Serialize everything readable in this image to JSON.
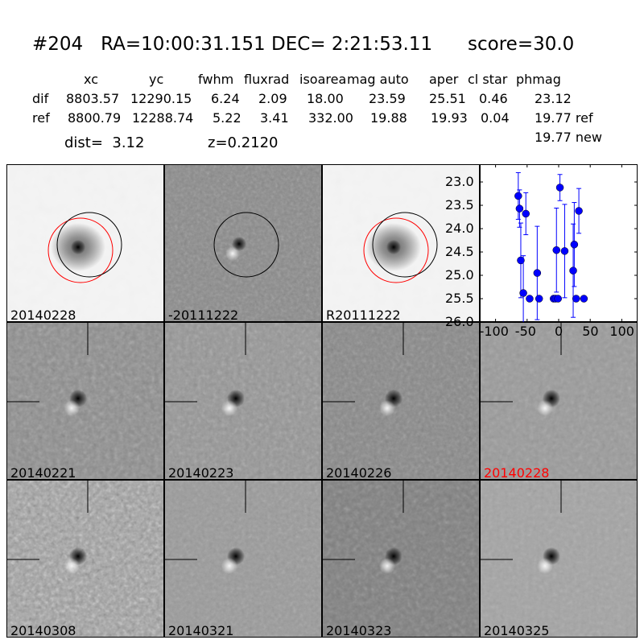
{
  "title": {
    "id": "#204",
    "ra": "RA=10:00:31.151",
    "dec": "DEC= 2:21:53.11",
    "score": "score=30.0"
  },
  "table": {
    "columns": [
      "xc",
      "yc",
      "fwhm",
      "fluxrad",
      "isoarea",
      "mag auto",
      "aper",
      "cl star",
      "phmag"
    ],
    "rows": [
      {
        "label": "dif",
        "values": [
          "8803.57",
          "12290.15",
          "6.24",
          "2.09",
          "18.00",
          "23.59",
          "25.51",
          "0.46",
          "23.12"
        ]
      },
      {
        "label": "ref",
        "values": [
          "8800.79",
          "12288.74",
          "5.22",
          "3.41",
          "332.00",
          "19.88",
          "19.93",
          "0.04",
          "19.77 ref"
        ]
      }
    ],
    "extra_phmag": "19.77 new",
    "dist": "dist=  3.12",
    "z": "z=0.2120"
  },
  "stamps": [
    {
      "label": "20140228",
      "kind": "image",
      "color": "#000000"
    },
    {
      "label": "-20111222",
      "kind": "diff",
      "color": "#000000"
    },
    {
      "label": "R20111222",
      "kind": "image",
      "color": "#000000"
    },
    {
      "label": "20140221",
      "kind": "diff",
      "color": "#000000"
    },
    {
      "label": "20140223",
      "kind": "diff",
      "color": "#000000"
    },
    {
      "label": "20140226",
      "kind": "diff",
      "color": "#000000"
    },
    {
      "label": "20140228",
      "kind": "diff",
      "color": "#ff0000"
    },
    {
      "label": "20140308",
      "kind": "diff",
      "color": "#000000"
    },
    {
      "label": "20140321",
      "kind": "diff",
      "color": "#000000"
    },
    {
      "label": "20140323",
      "kind": "diff",
      "color": "#000000"
    },
    {
      "label": "20140325",
      "kind": "diff",
      "color": "#000000"
    }
  ],
  "chart_data": {
    "type": "scatter",
    "xlim": [
      -125,
      125
    ],
    "ylim": [
      26.0,
      22.6
    ],
    "y_inverted": true,
    "xticks": [
      "-100",
      "-50",
      "0",
      "50",
      "100"
    ],
    "yticks": [
      "23.0",
      "23.5",
      "24.0",
      "24.5",
      "25.0",
      "25.5",
      "26.0"
    ],
    "marker_color": "#0000ff",
    "points": [
      {
        "x": -64,
        "y": 23.3,
        "yerr": 0.5
      },
      {
        "x": -62,
        "y": 23.57,
        "yerr": 0.4
      },
      {
        "x": -52,
        "y": 23.68,
        "yerr": 0.45
      },
      {
        "x": -60,
        "y": 24.68,
        "yerr": 0.8
      },
      {
        "x": -56,
        "y": 25.38,
        "yerr": 0.8
      },
      {
        "x": -46,
        "y": 25.5,
        "yerr": 0.05
      },
      {
        "x": -34,
        "y": 24.95,
        "yerr": 1.0
      },
      {
        "x": -31,
        "y": 25.5,
        "yerr": 0.05
      },
      {
        "x": -8,
        "y": 25.5,
        "yerr": 0.05
      },
      {
        "x": -5,
        "y": 25.5,
        "yerr": 0.05
      },
      {
        "x": -1,
        "y": 25.5,
        "yerr": 0.05
      },
      {
        "x": -3.5,
        "y": 24.46,
        "yerr": 0.9
      },
      {
        "x": 2,
        "y": 23.12,
        "yerr": 0.28
      },
      {
        "x": 9.5,
        "y": 24.48,
        "yerr": 1.0
      },
      {
        "x": 23,
        "y": 24.9,
        "yerr": 1.0
      },
      {
        "x": 24.7,
        "y": 24.34,
        "yerr": 0.9
      },
      {
        "x": 27.7,
        "y": 25.5,
        "yerr": 0.05
      },
      {
        "x": 32,
        "y": 23.62,
        "yerr": 0.48
      },
      {
        "x": 40,
        "y": 25.5,
        "yerr": 0.05
      }
    ]
  }
}
